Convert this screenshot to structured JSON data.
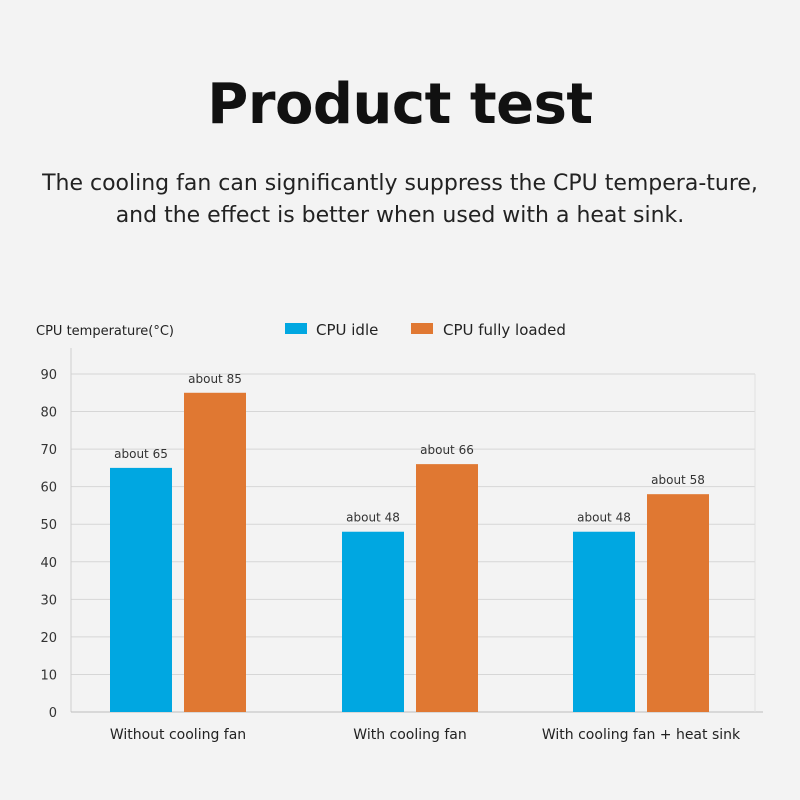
{
  "header": {
    "title": "Product test",
    "subtitle": "The cooling fan can significantly suppress the CPU tempera-ture, and the effect is better when used with a heat sink."
  },
  "chart_data": {
    "type": "bar",
    "title": "",
    "xlabel": "",
    "ylabel": "CPU temperature(°C)",
    "ylim": [
      0,
      90
    ],
    "yticks": [
      0,
      10,
      20,
      30,
      40,
      50,
      60,
      70,
      80,
      90
    ],
    "grid": true,
    "legend": "top-center",
    "categories": [
      "Without cooling fan",
      "With cooling fan",
      "With cooling fan + heat sink"
    ],
    "series": [
      {
        "name": "CPU idle",
        "color": "#00a7e1",
        "values": [
          65,
          48,
          48
        ],
        "labels": [
          "about 65",
          "about 48",
          "about 48"
        ]
      },
      {
        "name": "CPU fully loaded",
        "color": "#e07832",
        "values": [
          85,
          66,
          58
        ],
        "labels": [
          "about 85",
          "about 66",
          "about 58"
        ]
      }
    ]
  }
}
